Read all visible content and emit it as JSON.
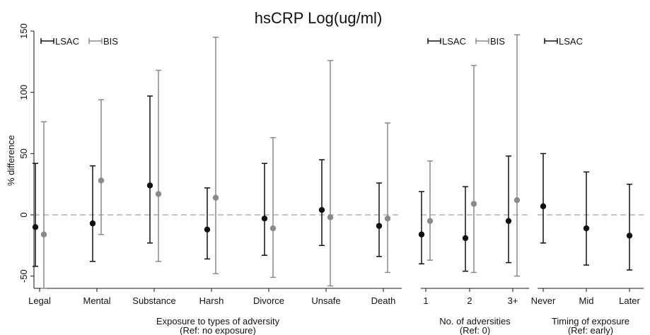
{
  "chart_data": {
    "title": "hsCRP Log(ug/ml)",
    "ylabel": "% difference",
    "ylim": [
      -60,
      150
    ],
    "yticks": [
      -50,
      0,
      50,
      100,
      150
    ],
    "reference_line": 0,
    "grid": false,
    "colors": {
      "LSAC": "#111111",
      "BIS": "#8a8a8a",
      "reference": "#b0b0b0"
    },
    "panels": [
      {
        "xlabel": "Exposure to types of adversity",
        "xlabel_sub": "(Ref: no exposure)",
        "legend": [
          "LSAC",
          "BIS"
        ],
        "type": "errorbar",
        "categories": [
          "Legal",
          "Mental",
          "Substance",
          "Harsh",
          "Divorce",
          "Unsafe",
          "Death"
        ],
        "series": [
          {
            "name": "LSAC",
            "values": [
              -10,
              -7,
              24,
              -12,
              -3,
              4,
              -9
            ],
            "lower": [
              -42,
              -38,
              -23,
              -36,
              -33,
              -25,
              -34
            ],
            "upper": [
              42,
              40,
              97,
              22,
              42,
              45,
              26
            ]
          },
          {
            "name": "BIS",
            "values": [
              -16,
              28,
              17,
              14,
              -11,
              -2,
              -3
            ],
            "lower": [
              -60,
              -16,
              -38,
              -48,
              -51,
              -58,
              -47
            ],
            "upper": [
              76,
              94,
              118,
              145,
              63,
              126,
              75
            ]
          }
        ]
      },
      {
        "xlabel": "No. of adversities",
        "xlabel_sub": "(Ref: 0)",
        "legend": [
          "LSAC",
          "BIS"
        ],
        "type": "errorbar",
        "categories": [
          "1",
          "2",
          "3+"
        ],
        "series": [
          {
            "name": "LSAC",
            "values": [
              -16,
              -19,
              -5
            ],
            "lower": [
              -40,
              -46,
              -39
            ],
            "upper": [
              19,
              23,
              48
            ]
          },
          {
            "name": "BIS",
            "values": [
              -5,
              9,
              12
            ],
            "lower": [
              -37,
              -47,
              -50
            ],
            "upper": [
              44,
              122,
              147
            ]
          }
        ]
      },
      {
        "xlabel": "Timing of exposure",
        "xlabel_sub": "(Ref: early)",
        "legend": [
          "LSAC"
        ],
        "type": "errorbar",
        "categories": [
          "Never",
          "Mid",
          "Later"
        ],
        "series": [
          {
            "name": "LSAC",
            "values": [
              7,
              -11,
              -17
            ],
            "lower": [
              -23,
              -41,
              -45
            ],
            "upper": [
              50,
              35,
              25
            ]
          }
        ]
      }
    ]
  }
}
